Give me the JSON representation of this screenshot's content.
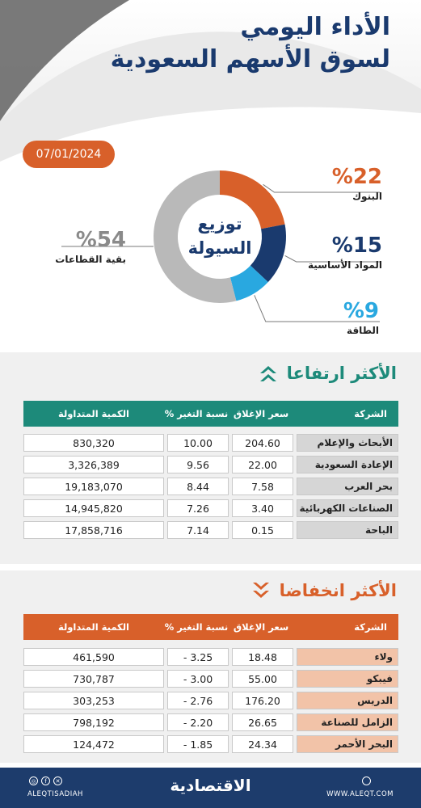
{
  "header": {
    "title_line1": "الأداء اليومي",
    "title_line2": "لسوق الأسهم السعودية",
    "date": "07/01/2024"
  },
  "chart_data": {
    "type": "pie",
    "title": "توزيع السيولة",
    "center_label_line1": "توزيع",
    "center_label_line2": "السيولة",
    "slices": [
      {
        "label": "البنوك",
        "value": 22,
        "display": "%22",
        "color": "#d8602a"
      },
      {
        "label": "المواد الأساسية",
        "value": 15,
        "display": "%15",
        "color": "#1a3a6e"
      },
      {
        "label": "الطاقة",
        "value": 9,
        "display": "%9",
        "color": "#29a8e0"
      },
      {
        "label": "بقية القطاعات",
        "value": 54,
        "display": "%54",
        "color": "#b9b9b9"
      }
    ]
  },
  "gainers": {
    "title": "الأكثر ارتفاعا",
    "header_color": "#1d8a7a",
    "name_cell_color": "#d6d6d6",
    "columns": [
      "الشركة",
      "سعر الإغلاق",
      "نسبة التغير %",
      "الكمية المتداولة"
    ],
    "rows": [
      {
        "name": "الأبحاث والإعلام",
        "close": "204.60",
        "change": "10.00",
        "volume": "830,320"
      },
      {
        "name": "الإعادة السعودية",
        "close": "22.00",
        "change": "9.56",
        "volume": "3,326,389"
      },
      {
        "name": "بحر العرب",
        "close": "7.58",
        "change": "8.44",
        "volume": "19,183,070"
      },
      {
        "name": "الصناعات الكهربائية",
        "close": "3.40",
        "change": "7.26",
        "volume": "14,945,820"
      },
      {
        "name": "الباحة",
        "close": "0.15",
        "change": "7.14",
        "volume": "17,858,716"
      }
    ]
  },
  "losers": {
    "title": "الأكثر انخفاضا",
    "header_color": "#d8602a",
    "name_cell_color": "#f2c3a8",
    "columns": [
      "الشركة",
      "سعر الإغلاق",
      "نسبة التغير %",
      "الكمية المتداولة"
    ],
    "rows": [
      {
        "name": "ولاء",
        "close": "18.48",
        "change": "3.25 -",
        "volume": "461,590"
      },
      {
        "name": "فيبكو",
        "close": "55.00",
        "change": "3.00 -",
        "volume": "730,787"
      },
      {
        "name": "الدريس",
        "close": "176.20",
        "change": "2.76 -",
        "volume": "303,253"
      },
      {
        "name": "الزامل للصناعة",
        "close": "26.65",
        "change": "2.20 -",
        "volume": "798,192"
      },
      {
        "name": "البحر الأحمر",
        "close": "24.34",
        "change": "1.85 -",
        "volume": "124,472"
      }
    ]
  },
  "footer": {
    "brand": "الاقتصادية",
    "handle": "ALEQTISADIAH",
    "site": "WWW.ALEQT.COM",
    "socials": [
      "ig-icon",
      "fb-icon",
      "x-icon"
    ]
  }
}
